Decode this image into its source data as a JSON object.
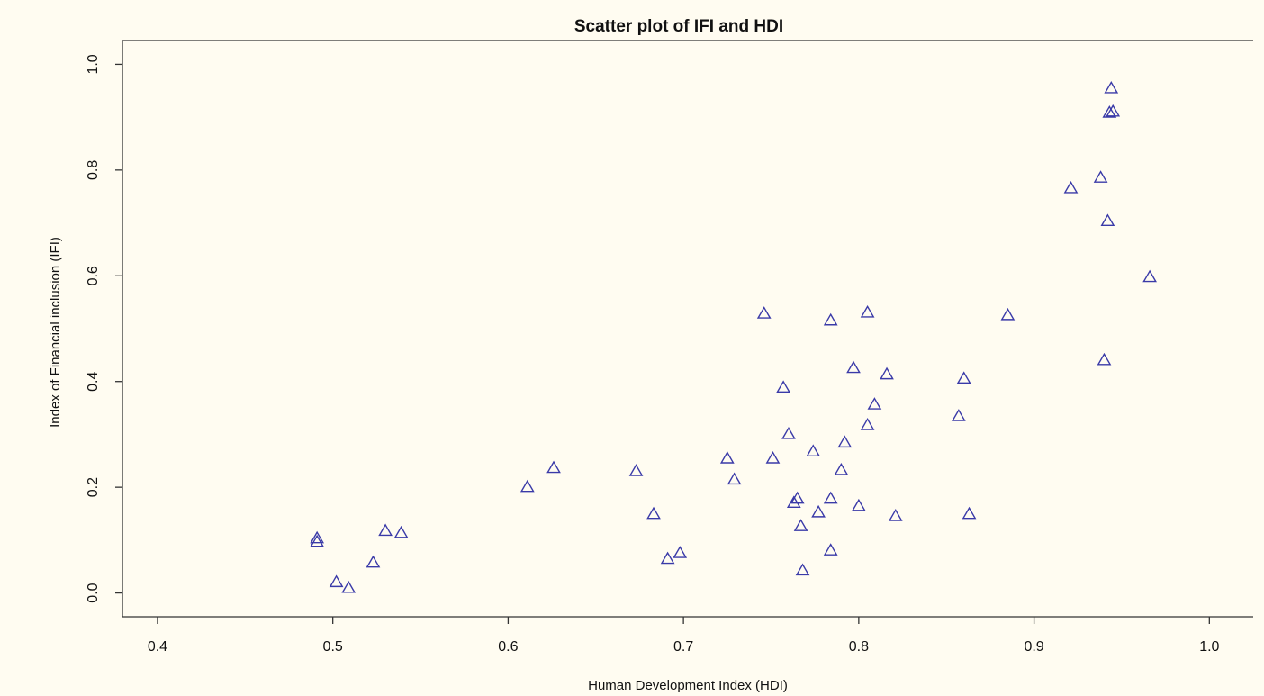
{
  "chart_data": {
    "type": "scatter",
    "title": "Scatter plot of IFI and HDI",
    "xlabel": "Human Development Index (HDI)",
    "ylabel": "Index of Financial inclusion (IFI)",
    "xlim": [
      0.38,
      1.025
    ],
    "ylim": [
      -0.045,
      1.045
    ],
    "xticks": [
      0.4,
      0.5,
      0.6,
      0.7,
      0.8,
      0.9,
      1.0
    ],
    "xtick_labels": [
      "0.4",
      "0.5",
      "0.6",
      "0.7",
      "0.8",
      "0.9",
      "1.0"
    ],
    "yticks": [
      0.0,
      0.2,
      0.4,
      0.6,
      0.8,
      1.0
    ],
    "ytick_labels": [
      "0.0",
      "0.2",
      "0.4",
      "0.6",
      "0.8",
      "1.0"
    ],
    "grid": false,
    "marker": "triangle-open",
    "marker_color": "#3a3aa8",
    "background": "#fffcf1",
    "points": [
      {
        "x": 0.491,
        "y": 0.103
      },
      {
        "x": 0.491,
        "y": 0.096
      },
      {
        "x": 0.502,
        "y": 0.02
      },
      {
        "x": 0.509,
        "y": 0.009
      },
      {
        "x": 0.523,
        "y": 0.057
      },
      {
        "x": 0.53,
        "y": 0.117
      },
      {
        "x": 0.539,
        "y": 0.113
      },
      {
        "x": 0.611,
        "y": 0.2
      },
      {
        "x": 0.626,
        "y": 0.236
      },
      {
        "x": 0.673,
        "y": 0.23
      },
      {
        "x": 0.683,
        "y": 0.149
      },
      {
        "x": 0.691,
        "y": 0.064
      },
      {
        "x": 0.698,
        "y": 0.075
      },
      {
        "x": 0.725,
        "y": 0.254
      },
      {
        "x": 0.729,
        "y": 0.214
      },
      {
        "x": 0.746,
        "y": 0.528
      },
      {
        "x": 0.751,
        "y": 0.254
      },
      {
        "x": 0.757,
        "y": 0.388
      },
      {
        "x": 0.76,
        "y": 0.3
      },
      {
        "x": 0.763,
        "y": 0.17
      },
      {
        "x": 0.765,
        "y": 0.178
      },
      {
        "x": 0.767,
        "y": 0.126
      },
      {
        "x": 0.768,
        "y": 0.042
      },
      {
        "x": 0.774,
        "y": 0.267
      },
      {
        "x": 0.777,
        "y": 0.152
      },
      {
        "x": 0.784,
        "y": 0.515
      },
      {
        "x": 0.784,
        "y": 0.178
      },
      {
        "x": 0.784,
        "y": 0.08
      },
      {
        "x": 0.79,
        "y": 0.232
      },
      {
        "x": 0.792,
        "y": 0.284
      },
      {
        "x": 0.797,
        "y": 0.425
      },
      {
        "x": 0.8,
        "y": 0.164
      },
      {
        "x": 0.805,
        "y": 0.53
      },
      {
        "x": 0.805,
        "y": 0.317
      },
      {
        "x": 0.809,
        "y": 0.356
      },
      {
        "x": 0.816,
        "y": 0.413
      },
      {
        "x": 0.821,
        "y": 0.145
      },
      {
        "x": 0.857,
        "y": 0.334
      },
      {
        "x": 0.86,
        "y": 0.405
      },
      {
        "x": 0.863,
        "y": 0.149
      },
      {
        "x": 0.885,
        "y": 0.525
      },
      {
        "x": 0.921,
        "y": 0.765
      },
      {
        "x": 0.938,
        "y": 0.785
      },
      {
        "x": 0.94,
        "y": 0.44
      },
      {
        "x": 0.942,
        "y": 0.703
      },
      {
        "x": 0.943,
        "y": 0.908
      },
      {
        "x": 0.945,
        "y": 0.91
      },
      {
        "x": 0.944,
        "y": 0.954
      },
      {
        "x": 0.966,
        "y": 0.597
      }
    ]
  }
}
